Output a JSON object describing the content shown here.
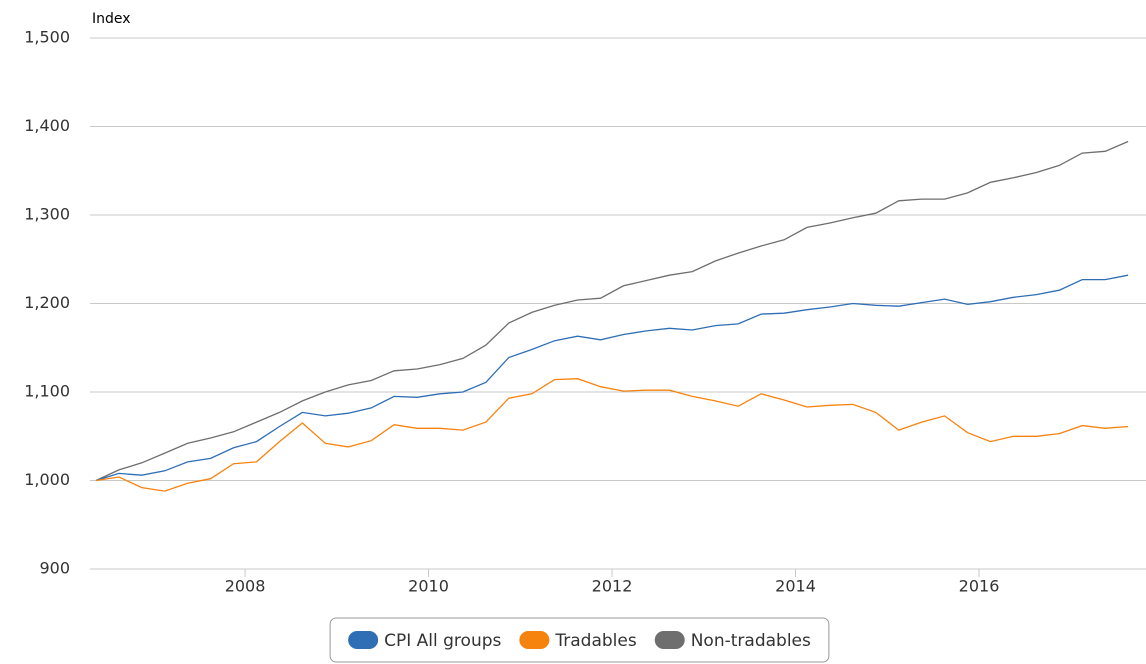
{
  "chart_data": {
    "type": "line",
    "y_label": "Index",
    "x": [
      2006.375,
      2006.625,
      2006.875,
      2007.125,
      2007.375,
      2007.625,
      2007.875,
      2008.125,
      2008.375,
      2008.625,
      2008.875,
      2009.125,
      2009.375,
      2009.625,
      2009.875,
      2010.125,
      2010.375,
      2010.625,
      2010.875,
      2011.125,
      2011.375,
      2011.625,
      2011.875,
      2012.125,
      2012.375,
      2012.625,
      2012.875,
      2013.125,
      2013.375,
      2013.625,
      2013.875,
      2014.125,
      2014.375,
      2014.625,
      2014.875,
      2015.125,
      2015.375,
      2015.625,
      2015.875,
      2016.125,
      2016.375,
      2016.625,
      2016.875,
      2017.125,
      2017.375,
      2017.625
    ],
    "series": [
      {
        "name": "CPI All groups",
        "color": "#2f6eb5",
        "values": [
          1000,
          1008,
          1006,
          1011,
          1021,
          1025,
          1037,
          1044,
          1061,
          1077,
          1073,
          1076,
          1082,
          1095,
          1094,
          1098,
          1100,
          1111,
          1139,
          1148,
          1158,
          1163,
          1159,
          1165,
          1169,
          1172,
          1170,
          1175,
          1177,
          1188,
          1189,
          1193,
          1196,
          1200,
          1198,
          1197,
          1201,
          1205,
          1199,
          1202,
          1207,
          1210,
          1215,
          1227,
          1227,
          1232
        ]
      },
      {
        "name": "Tradables",
        "color": "#f7830f",
        "values": [
          1000,
          1004,
          992,
          988,
          997,
          1002,
          1019,
          1021,
          1044,
          1065,
          1042,
          1038,
          1045,
          1063,
          1059,
          1059,
          1057,
          1066,
          1093,
          1098,
          1114,
          1115,
          1106,
          1101,
          1102,
          1102,
          1095,
          1090,
          1084,
          1098,
          1091,
          1083,
          1085,
          1086,
          1077,
          1057,
          1066,
          1073,
          1054,
          1044,
          1050,
          1050,
          1053,
          1062,
          1059,
          1061
        ]
      },
      {
        "name": "Non-tradables",
        "color": "#6e6e6e",
        "values": [
          1000,
          1012,
          1020,
          1031,
          1042,
          1048,
          1055,
          1066,
          1077,
          1090,
          1100,
          1108,
          1113,
          1124,
          1126,
          1131,
          1138,
          1153,
          1178,
          1190,
          1198,
          1204,
          1206,
          1220,
          1226,
          1232,
          1236,
          1248,
          1257,
          1265,
          1272,
          1286,
          1291,
          1297,
          1302,
          1316,
          1318,
          1318,
          1325,
          1337,
          1342,
          1348,
          1356,
          1370,
          1372,
          1383
        ]
      }
    ],
    "xlim": [
      2006.31,
      2017.82
    ],
    "xticks": [
      2008,
      2010,
      2012,
      2014,
      2016
    ],
    "ylim": [
      900,
      1500
    ],
    "yticks": [
      {
        "value": 900,
        "label": "900"
      },
      {
        "value": 1000,
        "label": "1,000"
      },
      {
        "value": 1100,
        "label": "1,100"
      },
      {
        "value": 1200,
        "label": "1,200"
      },
      {
        "value": 1300,
        "label": "1,300"
      },
      {
        "value": 1400,
        "label": "1,400"
      },
      {
        "value": 1500,
        "label": "1,500"
      }
    ],
    "grid": true,
    "legend": "bottom"
  }
}
